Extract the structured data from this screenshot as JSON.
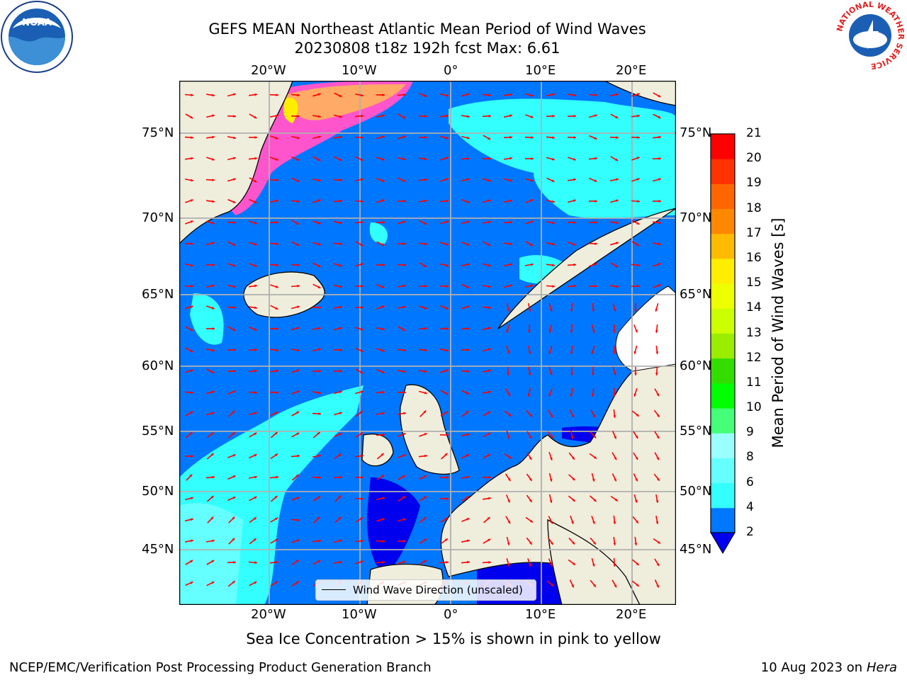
{
  "header": {
    "title_line1": "GEFS MEAN Northeast Atlantic Mean Period of Wind Waves",
    "title_line2": "20230808 t18z 192h fcst   Max: 6.61"
  },
  "logos": {
    "left": "NOAA",
    "right_ring": "NATIONAL WEATHER SERVICE"
  },
  "map": {
    "lon_ticks": [
      "20°W",
      "10°W",
      "0°",
      "10°E",
      "20°E"
    ],
    "lat_ticks": [
      "75°N",
      "70°N",
      "65°N",
      "60°N",
      "55°N",
      "50°N",
      "45°N"
    ],
    "legend_label": "Wind Wave Direction (unscaled)"
  },
  "colorbar": {
    "label": "Mean Period of Wind Waves [s]",
    "ticks": [
      "2",
      "4",
      "6",
      "8",
      "9",
      "10",
      "11",
      "12",
      "13",
      "14",
      "15",
      "16",
      "17",
      "18",
      "19",
      "20",
      "21"
    ],
    "colors": [
      "#0077ff",
      "#00ffff",
      "#33ffff",
      "#66ffff",
      "#99ffff",
      "#44ff77",
      "#00ff00",
      "#33dd00",
      "#99ee00",
      "#ccff00",
      "#eeff00",
      "#ffee00",
      "#ffbb00",
      "#ff8800",
      "#ff6600",
      "#ff3300",
      "#ff0000"
    ],
    "extend_color": "#0000ee"
  },
  "footer": {
    "note": "Sea Ice Concentration > 15% is shown in pink to yellow",
    "credit": "NCEP/EMC/Verification Post Processing Product Generation Branch",
    "date": "10 Aug 2023 on",
    "machine": "Hera"
  }
}
